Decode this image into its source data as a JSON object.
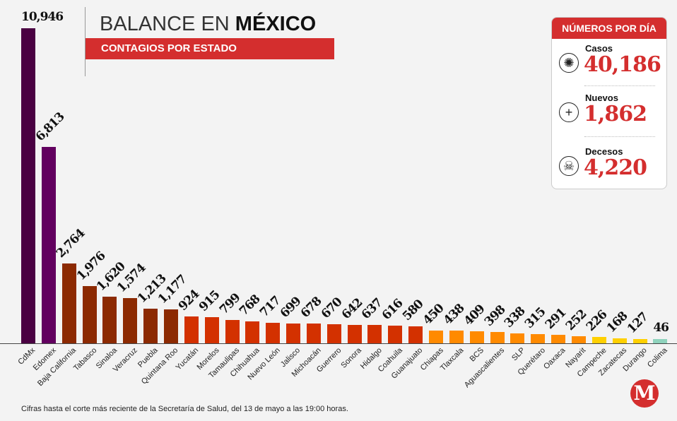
{
  "header": {
    "title_light": "BALANCE EN",
    "title_bold": "MÉXICO",
    "subtitle": "CONTAGIOS POR ESTADO"
  },
  "card": {
    "title": "NÚMEROS POR DÍA",
    "items": [
      {
        "label": "Casos",
        "value": "40,186",
        "icon": "virus-icon"
      },
      {
        "label": "Nuevos",
        "value": "1,862",
        "icon": "plus-icon"
      },
      {
        "label": "Decesos",
        "value": "4,220",
        "icon": "skull-icon"
      }
    ]
  },
  "footnote": "Cifras hasta el corte más reciente de la Secretaría de Salud, del 13 de mayo a las 19:00 horas.",
  "logo": "M",
  "chart_data": {
    "type": "bar",
    "title": "Contagios por estado",
    "xlabel": "",
    "ylabel": "",
    "categories": [
      "CdMx",
      "Edomex",
      "Baja California",
      "Tabasco",
      "Sinaloa",
      "Veracruz",
      "Puebla",
      "Quintana Roo",
      "Yucatán",
      "Morelos",
      "Tamaulipas",
      "Chihuahua",
      "Nuevo León",
      "Jalisco",
      "Michoacán",
      "Guerrero",
      "Sonora",
      "Hidalgo",
      "Coahuila",
      "Guanajuato",
      "Chiapas",
      "Tlaxcala",
      "BCS",
      "Aguascalientes",
      "SLP",
      "Querétaro",
      "Oaxaca",
      "Nayarit",
      "Campeche",
      "Zacatecas",
      "Durango",
      "Colima"
    ],
    "values": [
      10946,
      6813,
      2764,
      1976,
      1620,
      1574,
      1213,
      1177,
      924,
      915,
      799,
      768,
      717,
      699,
      678,
      670,
      642,
      637,
      616,
      580,
      450,
      438,
      409,
      398,
      338,
      315,
      291,
      252,
      226,
      168,
      127,
      46
    ],
    "labels": [
      "10,946",
      "6,813",
      "2,764",
      "1,976",
      "1,620",
      "1,574",
      "1,213",
      "1,177",
      "924",
      "915",
      "799",
      "768",
      "717",
      "699",
      "678",
      "670",
      "642",
      "637",
      "616",
      "580",
      "450",
      "438",
      "409",
      "398",
      "338",
      "315",
      "291",
      "252",
      "226",
      "168",
      "127",
      "46"
    ],
    "colors": [
      "#4a0142",
      "#62005f",
      "#8c2a02",
      "#8c2a02",
      "#8c2a02",
      "#8c2a02",
      "#8c2a02",
      "#8c2a02",
      "#d33100",
      "#d33100",
      "#d33100",
      "#d33100",
      "#d33100",
      "#d33100",
      "#d33100",
      "#d33100",
      "#d33100",
      "#d33100",
      "#d33100",
      "#d33100",
      "#ff8a00",
      "#ff8a00",
      "#ff8a00",
      "#ff8a00",
      "#ff8a00",
      "#ff8a00",
      "#ff8a00",
      "#ff8a00",
      "#ffd000",
      "#ffd000",
      "#ffd000",
      "#8fd3bd"
    ],
    "ylim": [
      0,
      10946
    ],
    "grid": false
  }
}
